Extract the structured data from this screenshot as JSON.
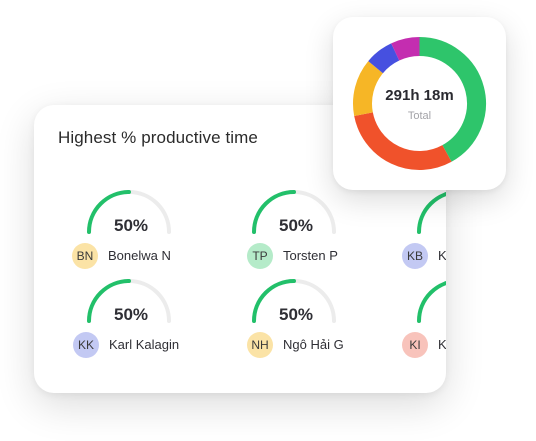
{
  "card": {
    "title": "Highest % productive time"
  },
  "people": [
    {
      "initials": "BN",
      "name": "Bonelwa N",
      "percent_label": "50%",
      "percent": 50,
      "avatar_bg": "#fbe3a6"
    },
    {
      "initials": "TP",
      "name": "Torsten P",
      "percent_label": "50%",
      "percent": 50,
      "avatar_bg": "#b5ebc9"
    },
    {
      "initials": "KB",
      "name": "K",
      "percent_label": "",
      "percent": 50,
      "avatar_bg": "#c3c9f3"
    },
    {
      "initials": "KK",
      "name": "Karl Kalagin",
      "percent_label": "50%",
      "percent": 50,
      "avatar_bg": "#c3c9f3"
    },
    {
      "initials": "NH",
      "name": "Ngô Hải G",
      "percent_label": "50%",
      "percent": 50,
      "avatar_bg": "#fbe3a6"
    },
    {
      "initials": "KI",
      "name": "K",
      "percent_label": "",
      "percent": 50,
      "avatar_bg": "#f8c3bb"
    }
  ],
  "gauge_colors": {
    "fill": "#22c06a",
    "track": "#ececec"
  },
  "donut": {
    "total_value": "291h 18m",
    "total_label": "Total",
    "segments": [
      {
        "color": "#2ec56b",
        "value": 0.42
      },
      {
        "color": "#f0522b",
        "value": 0.3
      },
      {
        "color": "#f6b626",
        "value": 0.14
      },
      {
        "color": "#4650e0",
        "value": 0.07
      },
      {
        "color": "#c42db0",
        "value": 0.07
      }
    ]
  }
}
